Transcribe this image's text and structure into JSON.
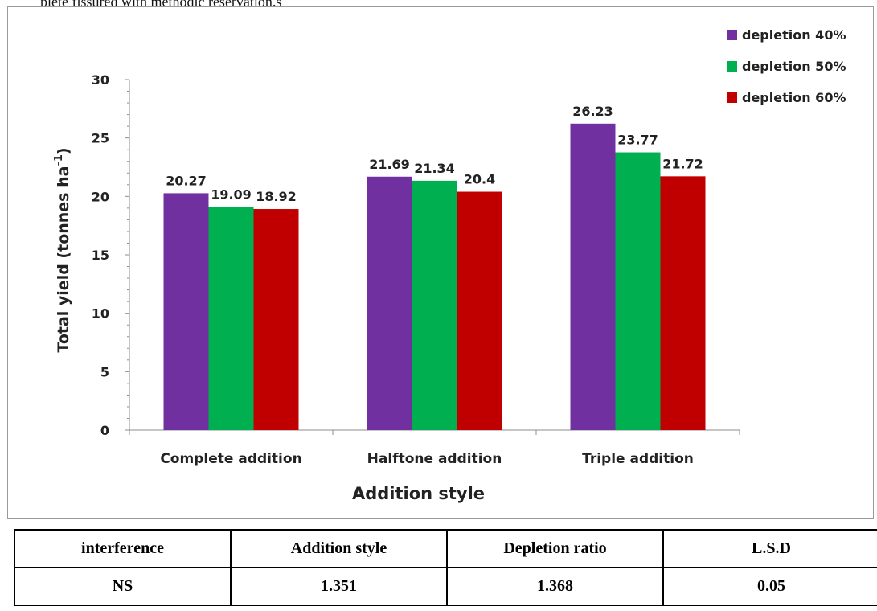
{
  "page": {
    "top_text": "plete fissured with methodic reservation.s"
  },
  "chart_data": {
    "type": "bar",
    "title": "",
    "xlabel": "Addition style",
    "ylabel": "Total yield (tonnes ha",
    "ylabel_sup": "-1",
    "ylim": [
      0,
      30
    ],
    "yticks": [
      "0",
      "5",
      "10",
      "15",
      "20",
      "25",
      "30"
    ],
    "categories": [
      "Complete addition",
      "Halftone addition",
      "Triple addition"
    ],
    "series": [
      {
        "name": "depletion 40%",
        "color": "#7030a0",
        "values": [
          20.27,
          21.69,
          26.23
        ],
        "labels": [
          "20.27",
          "21.69",
          "26.23"
        ]
      },
      {
        "name": "depletion 50%",
        "color": "#00b050",
        "values": [
          19.09,
          21.34,
          23.77
        ],
        "labels": [
          "19.09",
          "21.34",
          "23.77"
        ]
      },
      {
        "name": "depletion 60%",
        "color": "#c00000",
        "values": [
          18.92,
          20.4,
          21.72
        ],
        "labels": [
          "18.92",
          "20.4",
          "21.72"
        ]
      }
    ],
    "legend_position": "top-right",
    "grid": false
  },
  "table": {
    "headers": [
      "interference",
      "Addition style",
      "Depletion ratio",
      "L.S.D"
    ],
    "rows": [
      [
        "NS",
        "1.351",
        "1.368",
        "0.05"
      ]
    ]
  }
}
